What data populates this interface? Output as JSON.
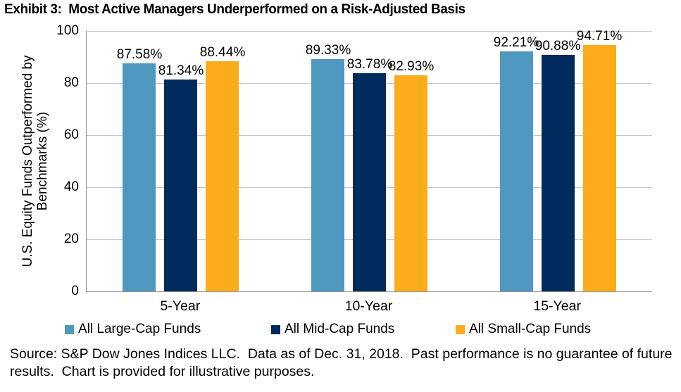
{
  "title": "Exhibit 3:  Most Active Managers Underperformed on a Risk-Adjusted Basis",
  "source_note": "Source: S&P Dow Jones Indices LLC.  Data as of Dec. 31, 2018.  Past performance is no guarantee of future results.  Chart is provided for illustrative purposes.",
  "chart_data": {
    "type": "bar",
    "title": "Exhibit 3: Most Active Managers Underperformed on a Risk-Adjusted Basis",
    "categories": [
      "5-Year",
      "10-Year",
      "15-Year"
    ],
    "series": [
      {
        "name": "All Large-Cap Funds",
        "color": "#4F98C0",
        "values": [
          87.58,
          89.33,
          92.21
        ]
      },
      {
        "name": "All Mid-Cap Funds",
        "color": "#002B5C",
        "values": [
          81.34,
          83.78,
          90.88
        ]
      },
      {
        "name": "All Small-Cap Funds",
        "color": "#FCAC1B",
        "values": [
          88.44,
          82.93,
          94.71
        ]
      }
    ],
    "data_labels": [
      [
        "87.58%",
        "89.33%",
        "92.21%"
      ],
      [
        "81.34%",
        "83.78%",
        "90.88%"
      ],
      [
        "88.44%",
        "82.93%",
        "94.71%"
      ]
    ],
    "xlabel": "",
    "ylabel": "U.S. Equity Funds Outperformed by Benchmarks (%)",
    "ylim": [
      0,
      100
    ],
    "yticks": [
      0,
      20,
      40,
      60,
      80,
      100
    ],
    "grid": "horizontal",
    "legend_position": "bottom"
  }
}
